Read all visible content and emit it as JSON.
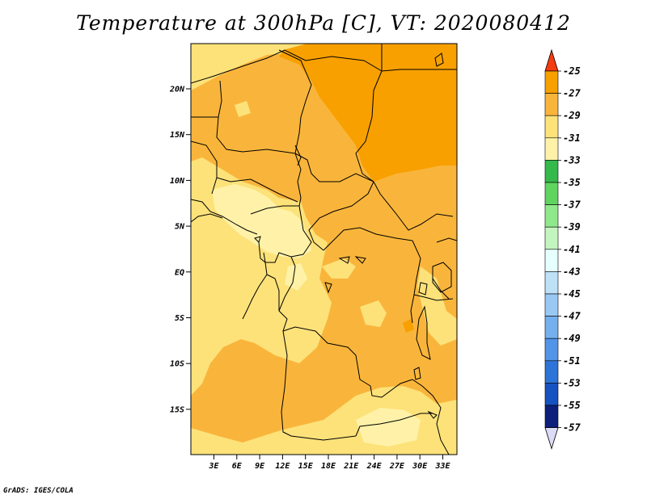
{
  "title": "Temperature at 300hPa [C], VT: 2020080412",
  "credit": "GrADS: IGES/COLA",
  "map": {
    "lat_ticks": [
      "20N",
      "15N",
      "10N",
      "5N",
      "EQ",
      "5S",
      "10S",
      "15S"
    ],
    "lon_ticks": [
      "3E",
      "6E",
      "9E",
      "12E",
      "15E",
      "18E",
      "21E",
      "24E",
      "27E",
      "30E",
      "33E"
    ],
    "palette": {
      "c27_25": "#f06c00",
      "c29_27": "#f7a000",
      "c31_29": "#f9b53b",
      "c33_31": "#fde27a",
      "c35_33": "#fff2a8"
    }
  },
  "colorbar": {
    "labels": [
      "-25",
      "-27",
      "-29",
      "-31",
      "-33",
      "-35",
      "-37",
      "-39",
      "-41",
      "-43",
      "-45",
      "-47",
      "-49",
      "-51",
      "-53",
      "-55",
      "-57"
    ],
    "colors": [
      "#f06c00",
      "#f7a000",
      "#f9b53b",
      "#fde27a",
      "#fff2a8",
      "#35b94a",
      "#5fd55f",
      "#8fe98c",
      "#c3f6bf",
      "#e6ffff",
      "#bee1f8",
      "#99c9f3",
      "#75b0ee",
      "#5294e8",
      "#2e74d8",
      "#1652c0",
      "#0c1f7a"
    ],
    "top_arrow_color": "#f43c10",
    "bottom_arrow_color": "#dcdcf8"
  }
}
